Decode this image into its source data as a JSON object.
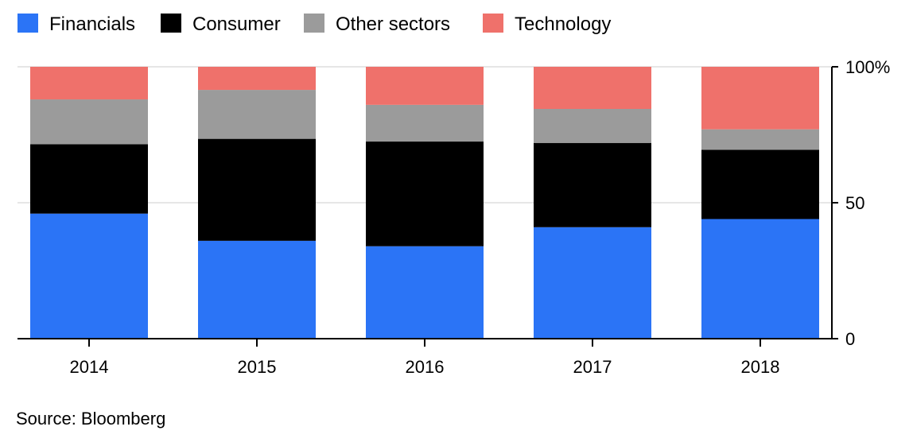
{
  "chart_data": {
    "type": "bar",
    "stacked": true,
    "categories": [
      "2014",
      "2015",
      "2016",
      "2017",
      "2018"
    ],
    "series": [
      {
        "name": "Financials",
        "color": "#2b74f6",
        "values": [
          46,
          36,
          34,
          41,
          44
        ]
      },
      {
        "name": "Consumer",
        "color": "#000000",
        "values": [
          25.5,
          37.5,
          38.5,
          31,
          25.5
        ]
      },
      {
        "name": "Other sectors",
        "color": "#9b9b9b",
        "values": [
          16.5,
          18,
          13.5,
          12.5,
          7.5
        ]
      },
      {
        "name": "Technology",
        "color": "#ef716b",
        "values": [
          12,
          8.5,
          14,
          15.5,
          23
        ]
      }
    ],
    "yticks": [
      {
        "value": 0,
        "label": "0"
      },
      {
        "value": 50,
        "label": "50"
      },
      {
        "value": 100,
        "label": "100%"
      }
    ],
    "ylim": [
      0,
      100
    ],
    "y_axis_side": "right",
    "legend_position": "top-left",
    "grid": true,
    "source": "Source: Bloomberg"
  }
}
